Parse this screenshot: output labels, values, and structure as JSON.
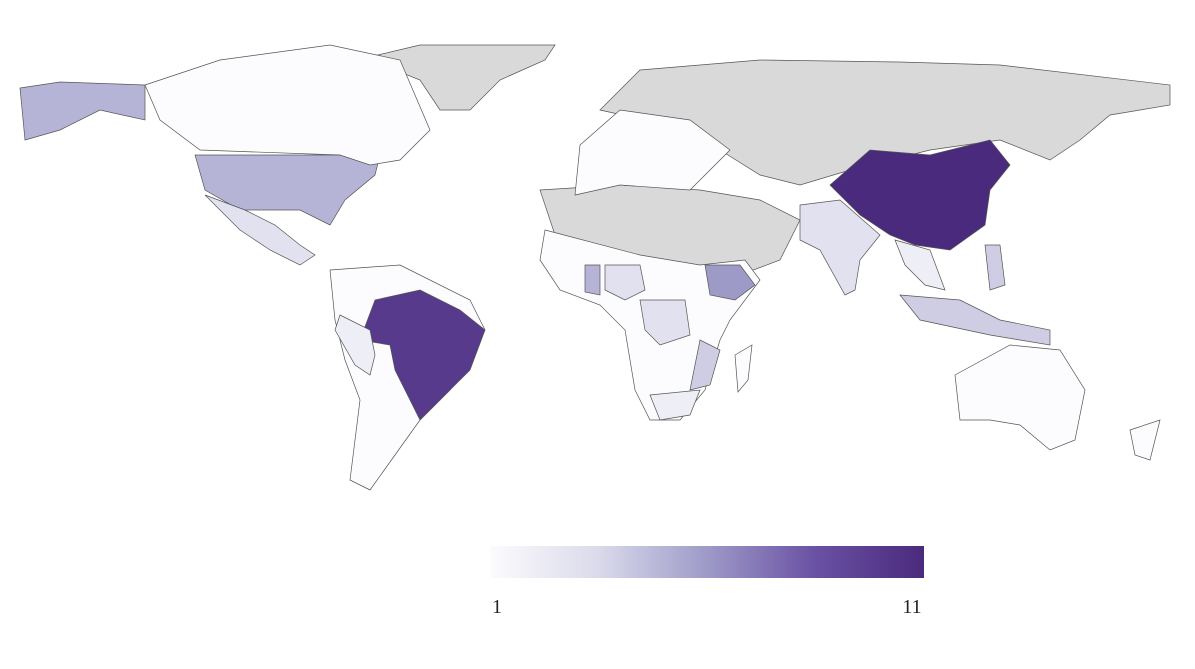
{
  "map": {
    "regions": [
      5,
      5,
      3,
      1,
      10,
      2,
      1,
      3,
      5,
      6,
      3,
      4,
      2,
      1,
      3,
      11,
      2,
      4,
      4,
      1,
      1,
      1,
      1
    ],
    "colorscale": [
      "#fcfbfd",
      "#dadaeb",
      "#9e9ac8",
      "#6a51a3",
      "#4a2a7d"
    ],
    "no_data_color": "#d9d9d9",
    "colorbar": {
      "range": [
        1,
        11
      ],
      "ticks": [
        1,
        11
      ]
    }
  }
}
